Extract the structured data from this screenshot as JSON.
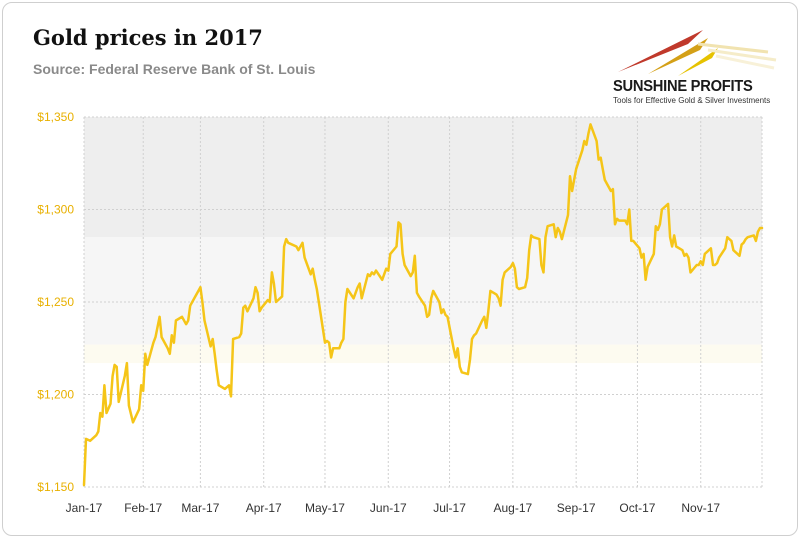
{
  "chart_data": {
    "type": "line",
    "title": "Gold prices in 2017",
    "subtitle": "Source: Federal Reserve Bank of St. Louis",
    "xlabel": "",
    "ylabel": "",
    "ylim": [
      1150,
      1350
    ],
    "xlim": [
      "2017-01-03",
      "2017-12-01"
    ],
    "grid": true,
    "y_ticks": [
      {
        "value": 1150,
        "label": "$1,150"
      },
      {
        "value": 1200,
        "label": "$1,200"
      },
      {
        "value": 1250,
        "label": "$1,250"
      },
      {
        "value": 1300,
        "label": "$1,300"
      },
      {
        "value": 1350,
        "label": "$1,350"
      }
    ],
    "x_ticks": [
      {
        "date": "2017-01-03",
        "label": "Jan-17"
      },
      {
        "date": "2017-02-01",
        "label": "Feb-17"
      },
      {
        "date": "2017-03-01",
        "label": "Mar-17"
      },
      {
        "date": "2017-04-01",
        "label": "Apr-17"
      },
      {
        "date": "2017-05-01",
        "label": "May-17"
      },
      {
        "date": "2017-06-01",
        "label": "Jun-17"
      },
      {
        "date": "2017-07-01",
        "label": "Jul-17"
      },
      {
        "date": "2017-08-01",
        "label": "Aug-17"
      },
      {
        "date": "2017-09-01",
        "label": "Sep-17"
      },
      {
        "date": "2017-10-01",
        "label": "Oct-17"
      },
      {
        "date": "2017-11-01",
        "label": "Nov-17"
      }
    ],
    "series": [
      {
        "color": "#f5c518",
        "points": [
          [
            "2017-01-03",
            1151
          ],
          [
            "2017-01-04",
            1176
          ],
          [
            "2017-01-06",
            1175
          ],
          [
            "2017-01-09",
            1178
          ],
          [
            "2017-01-10",
            1180
          ],
          [
            "2017-01-11",
            1190
          ],
          [
            "2017-01-12",
            1188
          ],
          [
            "2017-01-13",
            1205
          ],
          [
            "2017-01-14",
            1190
          ],
          [
            "2017-01-16",
            1195
          ],
          [
            "2017-01-17",
            1210
          ],
          [
            "2017-01-18",
            1216
          ],
          [
            "2017-01-19",
            1215
          ],
          [
            "2017-01-20",
            1196
          ],
          [
            "2017-01-23",
            1210
          ],
          [
            "2017-01-24",
            1217
          ],
          [
            "2017-01-25",
            1194
          ],
          [
            "2017-01-27",
            1185
          ],
          [
            "2017-01-30",
            1192
          ],
          [
            "2017-01-31",
            1205
          ],
          [
            "2017-02-01",
            1202
          ],
          [
            "2017-02-02",
            1222
          ],
          [
            "2017-02-03",
            1216
          ],
          [
            "2017-02-06",
            1228
          ],
          [
            "2017-02-07",
            1231
          ],
          [
            "2017-02-09",
            1242
          ],
          [
            "2017-02-10",
            1231
          ],
          [
            "2017-02-13",
            1225
          ],
          [
            "2017-02-14",
            1222
          ],
          [
            "2017-02-15",
            1232
          ],
          [
            "2017-02-16",
            1228
          ],
          [
            "2017-02-17",
            1240
          ],
          [
            "2017-02-20",
            1242
          ],
          [
            "2017-02-22",
            1238
          ],
          [
            "2017-02-23",
            1240
          ],
          [
            "2017-02-24",
            1248
          ],
          [
            "2017-02-27",
            1254
          ],
          [
            "2017-02-28",
            1256
          ],
          [
            "2017-03-01",
            1258
          ],
          [
            "2017-03-02",
            1250
          ],
          [
            "2017-03-03",
            1240
          ],
          [
            "2017-03-06",
            1226
          ],
          [
            "2017-03-07",
            1230
          ],
          [
            "2017-03-08",
            1222
          ],
          [
            "2017-03-09",
            1213
          ],
          [
            "2017-03-10",
            1205
          ],
          [
            "2017-03-13",
            1203
          ],
          [
            "2017-03-15",
            1205
          ],
          [
            "2017-03-16",
            1199
          ],
          [
            "2017-03-17",
            1230
          ],
          [
            "2017-03-20",
            1231
          ],
          [
            "2017-03-21",
            1233
          ],
          [
            "2017-03-22",
            1247
          ],
          [
            "2017-03-23",
            1248
          ],
          [
            "2017-03-24",
            1245
          ],
          [
            "2017-03-27",
            1252
          ],
          [
            "2017-03-28",
            1258
          ],
          [
            "2017-03-29",
            1255
          ],
          [
            "2017-03-30",
            1245
          ],
          [
            "2017-03-31",
            1247
          ],
          [
            "2017-04-03",
            1251
          ],
          [
            "2017-04-04",
            1250
          ],
          [
            "2017-04-05",
            1266
          ],
          [
            "2017-04-06",
            1260
          ],
          [
            "2017-04-07",
            1250
          ],
          [
            "2017-04-10",
            1253
          ],
          [
            "2017-04-11",
            1280
          ],
          [
            "2017-04-12",
            1284
          ],
          [
            "2017-04-13",
            1282
          ],
          [
            "2017-04-17",
            1280
          ],
          [
            "2017-04-18",
            1278
          ],
          [
            "2017-04-20",
            1282
          ],
          [
            "2017-04-21",
            1274
          ],
          [
            "2017-04-24",
            1265
          ],
          [
            "2017-04-25",
            1268
          ],
          [
            "2017-04-26",
            1262
          ],
          [
            "2017-04-27",
            1257
          ],
          [
            "2017-04-28",
            1250
          ],
          [
            "2017-05-01",
            1228
          ],
          [
            "2017-05-02",
            1229
          ],
          [
            "2017-05-03",
            1228
          ],
          [
            "2017-05-04",
            1220
          ],
          [
            "2017-05-05",
            1225
          ],
          [
            "2017-05-08",
            1225
          ],
          [
            "2017-05-09",
            1228
          ],
          [
            "2017-05-10",
            1230
          ],
          [
            "2017-05-11",
            1250
          ],
          [
            "2017-05-12",
            1257
          ],
          [
            "2017-05-15",
            1252
          ],
          [
            "2017-05-16",
            1255
          ],
          [
            "2017-05-17",
            1258
          ],
          [
            "2017-05-18",
            1260
          ],
          [
            "2017-05-19",
            1252
          ],
          [
            "2017-05-22",
            1265
          ],
          [
            "2017-05-23",
            1264
          ],
          [
            "2017-05-24",
            1266
          ],
          [
            "2017-05-25",
            1265
          ],
          [
            "2017-05-26",
            1267
          ],
          [
            "2017-05-29",
            1262
          ],
          [
            "2017-05-31",
            1268
          ],
          [
            "2017-06-01",
            1267
          ],
          [
            "2017-06-02",
            1276
          ],
          [
            "2017-06-05",
            1280
          ],
          [
            "2017-06-06",
            1293
          ],
          [
            "2017-06-07",
            1292
          ],
          [
            "2017-06-08",
            1276
          ],
          [
            "2017-06-09",
            1270
          ],
          [
            "2017-06-12",
            1264
          ],
          [
            "2017-06-13",
            1266
          ],
          [
            "2017-06-14",
            1275
          ],
          [
            "2017-06-15",
            1255
          ],
          [
            "2017-06-16",
            1253
          ],
          [
            "2017-06-19",
            1248
          ],
          [
            "2017-06-20",
            1242
          ],
          [
            "2017-06-21",
            1243
          ],
          [
            "2017-06-22",
            1252
          ],
          [
            "2017-06-23",
            1256
          ],
          [
            "2017-06-26",
            1250
          ],
          [
            "2017-06-27",
            1244
          ],
          [
            "2017-06-28",
            1246
          ],
          [
            "2017-06-29",
            1243
          ],
          [
            "2017-06-30",
            1242
          ],
          [
            "2017-07-03",
            1225
          ],
          [
            "2017-07-04",
            1220
          ],
          [
            "2017-07-05",
            1225
          ],
          [
            "2017-07-06",
            1215
          ],
          [
            "2017-07-07",
            1212
          ],
          [
            "2017-07-10",
            1211
          ],
          [
            "2017-07-11",
            1219
          ],
          [
            "2017-07-12",
            1230
          ],
          [
            "2017-07-13",
            1232
          ],
          [
            "2017-07-14",
            1233
          ],
          [
            "2017-07-17",
            1240
          ],
          [
            "2017-07-18",
            1242
          ],
          [
            "2017-07-19",
            1236
          ],
          [
            "2017-07-20",
            1245
          ],
          [
            "2017-07-21",
            1256
          ],
          [
            "2017-07-24",
            1254
          ],
          [
            "2017-07-25",
            1252
          ],
          [
            "2017-07-26",
            1248
          ],
          [
            "2017-07-27",
            1262
          ],
          [
            "2017-07-28",
            1266
          ],
          [
            "2017-07-31",
            1269
          ],
          [
            "2017-08-01",
            1271
          ],
          [
            "2017-08-02",
            1268
          ],
          [
            "2017-08-03",
            1258
          ],
          [
            "2017-08-04",
            1257
          ],
          [
            "2017-08-07",
            1258
          ],
          [
            "2017-08-08",
            1263
          ],
          [
            "2017-08-09",
            1278
          ],
          [
            "2017-08-10",
            1286
          ],
          [
            "2017-08-11",
            1285
          ],
          [
            "2017-08-14",
            1284
          ],
          [
            "2017-08-15",
            1270
          ],
          [
            "2017-08-16",
            1266
          ],
          [
            "2017-08-17",
            1285
          ],
          [
            "2017-08-18",
            1291
          ],
          [
            "2017-08-21",
            1292
          ],
          [
            "2017-08-22",
            1285
          ],
          [
            "2017-08-23",
            1290
          ],
          [
            "2017-08-24",
            1288
          ],
          [
            "2017-08-25",
            1284
          ],
          [
            "2017-08-28",
            1297
          ],
          [
            "2017-08-29",
            1318
          ],
          [
            "2017-08-30",
            1310
          ],
          [
            "2017-08-31",
            1316
          ],
          [
            "2017-09-01",
            1322
          ],
          [
            "2017-09-04",
            1332
          ],
          [
            "2017-09-05",
            1337
          ],
          [
            "2017-09-06",
            1335
          ],
          [
            "2017-09-07",
            1341
          ],
          [
            "2017-09-08",
            1346
          ],
          [
            "2017-09-11",
            1337
          ],
          [
            "2017-09-12",
            1327
          ],
          [
            "2017-09-13",
            1328
          ],
          [
            "2017-09-14",
            1322
          ],
          [
            "2017-09-15",
            1316
          ],
          [
            "2017-09-18",
            1310
          ],
          [
            "2017-09-19",
            1311
          ],
          [
            "2017-09-20",
            1292
          ],
          [
            "2017-09-21",
            1295
          ],
          [
            "2017-09-22",
            1294
          ],
          [
            "2017-09-25",
            1294
          ],
          [
            "2017-09-26",
            1292
          ],
          [
            "2017-09-27",
            1300
          ],
          [
            "2017-09-28",
            1283
          ],
          [
            "2017-09-29",
            1283
          ],
          [
            "2017-10-02",
            1279
          ],
          [
            "2017-10-03",
            1274
          ],
          [
            "2017-10-04",
            1276
          ],
          [
            "2017-10-05",
            1262
          ],
          [
            "2017-10-06",
            1269
          ],
          [
            "2017-10-09",
            1276
          ],
          [
            "2017-10-10",
            1291
          ],
          [
            "2017-10-11",
            1289
          ],
          [
            "2017-10-12",
            1292
          ],
          [
            "2017-10-13",
            1300
          ],
          [
            "2017-10-16",
            1303
          ],
          [
            "2017-10-17",
            1285
          ],
          [
            "2017-10-18",
            1280
          ],
          [
            "2017-10-19",
            1286
          ],
          [
            "2017-10-20",
            1280
          ],
          [
            "2017-10-23",
            1278
          ],
          [
            "2017-10-24",
            1275
          ],
          [
            "2017-10-25",
            1276
          ],
          [
            "2017-10-26",
            1274
          ],
          [
            "2017-10-27",
            1266
          ],
          [
            "2017-10-30",
            1270
          ],
          [
            "2017-10-31",
            1270
          ],
          [
            "2017-11-01",
            1272
          ],
          [
            "2017-11-02",
            1270
          ],
          [
            "2017-11-03",
            1276
          ],
          [
            "2017-11-06",
            1279
          ],
          [
            "2017-11-07",
            1270
          ],
          [
            "2017-11-08",
            1270
          ],
          [
            "2017-11-09",
            1271
          ],
          [
            "2017-11-10",
            1274
          ],
          [
            "2017-11-13",
            1279
          ],
          [
            "2017-11-14",
            1285
          ],
          [
            "2017-11-15",
            1284
          ],
          [
            "2017-11-16",
            1283
          ],
          [
            "2017-11-17",
            1278
          ],
          [
            "2017-11-20",
            1275
          ],
          [
            "2017-11-21",
            1281
          ],
          [
            "2017-11-22",
            1282
          ],
          [
            "2017-11-23",
            1284
          ],
          [
            "2017-11-24",
            1285
          ],
          [
            "2017-11-27",
            1286
          ],
          [
            "2017-11-28",
            1283
          ],
          [
            "2017-11-29",
            1288
          ],
          [
            "2017-11-30",
            1290
          ],
          [
            "2017-12-01",
            1290
          ]
        ]
      }
    ]
  },
  "logo": {
    "brand": "SUNSHINE PROFITS",
    "tagline": "Tools for Effective Gold & Silver Investments"
  },
  "colors": {
    "line": "#f5c518",
    "y_tick_labels": "#e8b000",
    "plot_band_upper": "#eeeeee",
    "plot_band_lower": "#f6f6f6"
  }
}
